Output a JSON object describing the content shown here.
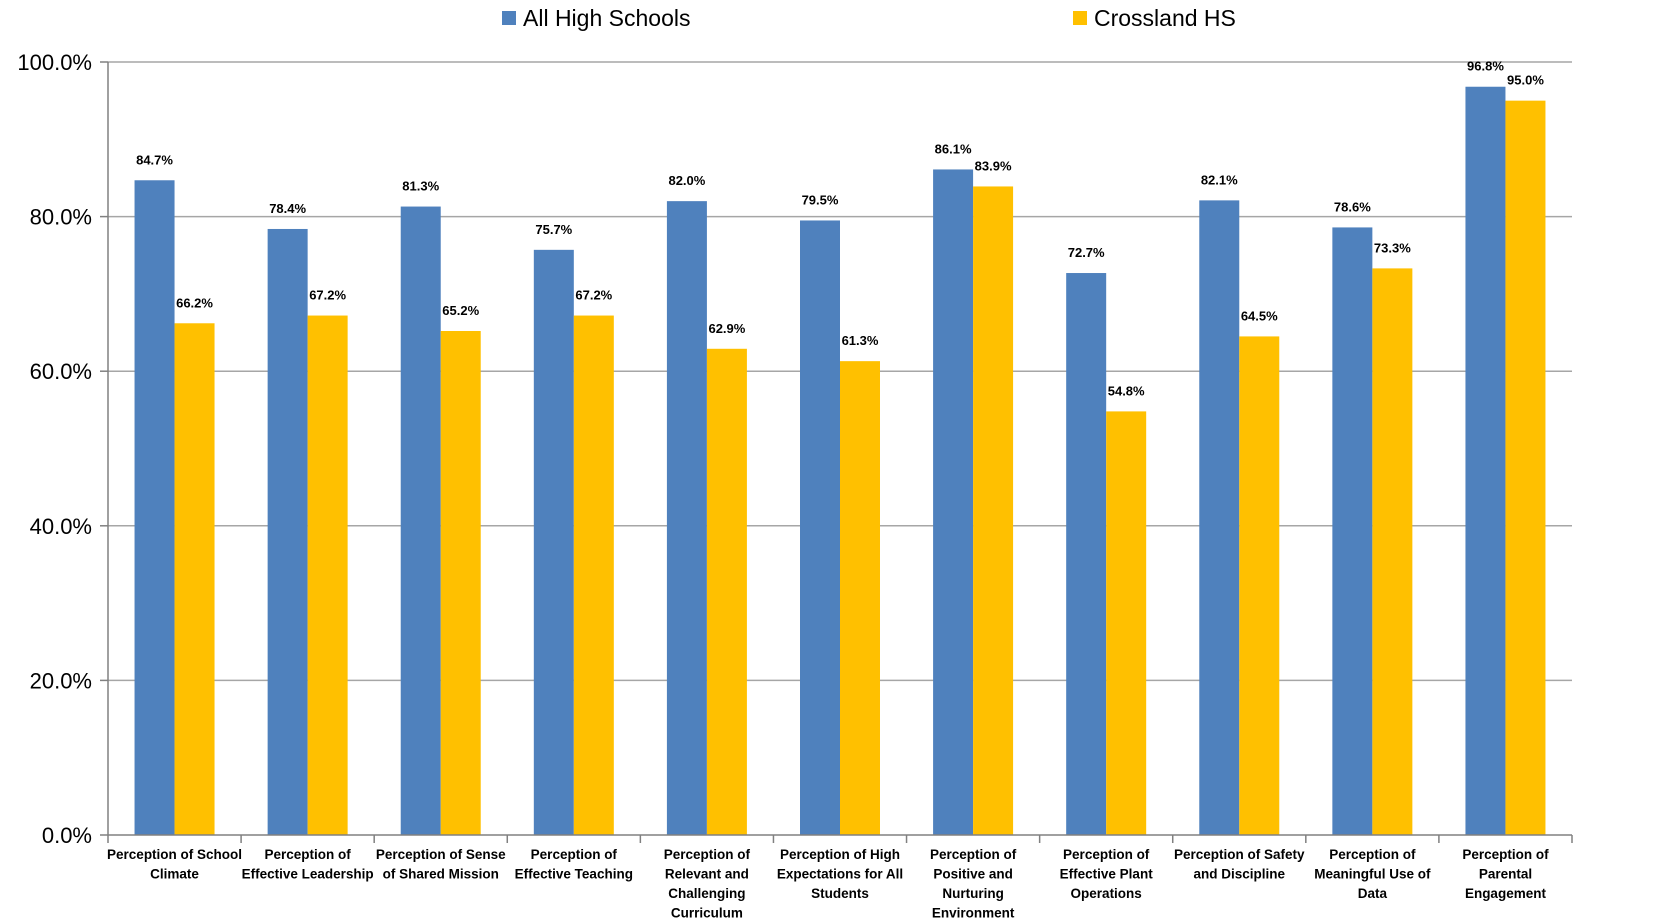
{
  "chart_data": {
    "type": "bar",
    "categories": [
      [
        "Perception of School",
        "Climate"
      ],
      [
        "Perception of",
        "Effective Leadership"
      ],
      [
        "Perception of Sense",
        "of Shared Mission"
      ],
      [
        "Perception of",
        "Effective Teaching"
      ],
      [
        "Perception of",
        "Relevant and",
        "Challenging",
        "Curriculum"
      ],
      [
        "Perception of High",
        "Expectations for All",
        "Students"
      ],
      [
        "Perception of",
        "Positive and",
        "Nurturing",
        "Environment"
      ],
      [
        "Perception of",
        "Effective Plant",
        "Operations"
      ],
      [
        "Perception of Safety",
        "and Discipline"
      ],
      [
        "Perception of",
        "Meaningful Use of",
        "Data"
      ],
      [
        "Perception of",
        "Parental",
        "Engagement"
      ]
    ],
    "series": [
      {
        "name": "All High Schools",
        "color": "#4F81BD",
        "values": [
          84.7,
          78.4,
          81.3,
          75.7,
          82.0,
          79.5,
          86.1,
          72.7,
          82.1,
          78.6,
          96.8
        ],
        "labels": [
          "84.7%",
          "78.4%",
          "81.3%",
          "75.7%",
          "82.0%",
          "79.5%",
          "86.1%",
          "72.7%",
          "82.1%",
          "78.6%",
          "96.8%"
        ]
      },
      {
        "name": "Crossland HS",
        "color": "#FFC000",
        "values": [
          66.2,
          67.2,
          65.2,
          67.2,
          62.9,
          61.3,
          83.9,
          54.8,
          64.5,
          73.3,
          95.0
        ],
        "labels": [
          "66.2%",
          "67.2%",
          "65.2%",
          "67.2%",
          "62.9%",
          "61.3%",
          "83.9%",
          "54.8%",
          "64.5%",
          "73.3%",
          "95.0%"
        ]
      }
    ],
    "ylim": [
      0,
      100
    ],
    "yticks": [
      0,
      20,
      40,
      60,
      80,
      100
    ],
    "ytick_labels": [
      "0.0%",
      "20.0%",
      "40.0%",
      "60.0%",
      "80.0%",
      "100.0%"
    ],
    "grid": true,
    "legend_position": "top",
    "gridline_color": "#A6A6A6",
    "axis_color": "#808080"
  }
}
